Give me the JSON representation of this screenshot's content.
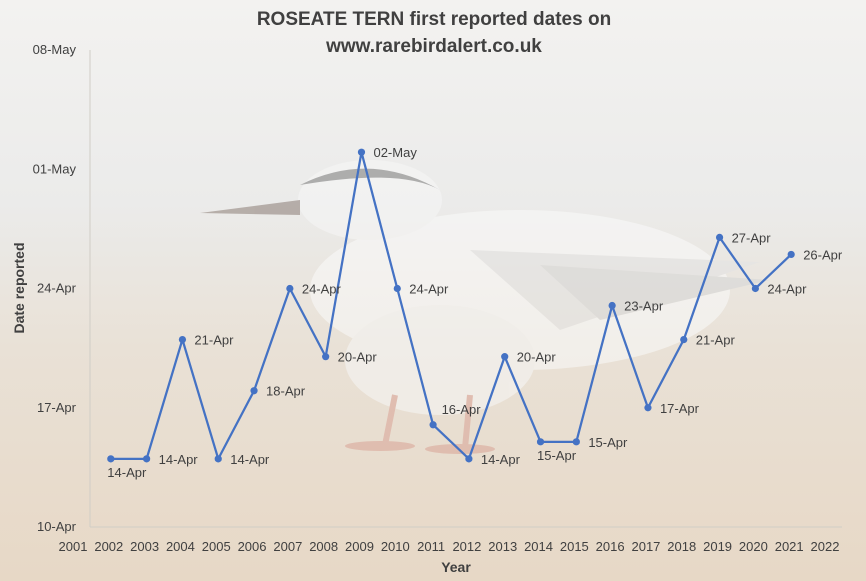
{
  "chart_data": {
    "type": "line",
    "title_line1": "ROSEATE TERN first reported dates on",
    "title_line2": "www.rarebirdalert.co.uk",
    "xlabel": "Year",
    "ylabel": "Date reported",
    "xlim": [
      2001,
      2022
    ],
    "x_ticks": [
      "2001",
      "2002",
      "2003",
      "2004",
      "2005",
      "2006",
      "2007",
      "2008",
      "2009",
      "2010",
      "2011",
      "2012",
      "2013",
      "2014",
      "2015",
      "2016",
      "2017",
      "2018",
      "2019",
      "2020",
      "2021",
      "2022"
    ],
    "y_ticks": [
      "10-Apr",
      "17-Apr",
      "24-Apr",
      "01-May",
      "08-May"
    ],
    "y_range_day_of_april": [
      10,
      38
    ],
    "grid": false,
    "legend": "none",
    "series": [
      {
        "color": "#4472c4",
        "x": [
          2002,
          2003,
          2004,
          2005,
          2006,
          2007,
          2008,
          2009,
          2010,
          2011,
          2012,
          2013,
          2014,
          2015,
          2016,
          2017,
          2018,
          2019,
          2020,
          2021
        ],
        "y": [
          "14-Apr",
          "14-Apr",
          "21-Apr",
          "14-Apr",
          "18-Apr",
          "24-Apr",
          "20-Apr",
          "02-May",
          "24-Apr",
          "16-Apr",
          "14-Apr",
          "20-Apr",
          "15-Apr",
          "15-Apr",
          "23-Apr",
          "17-Apr",
          "21-Apr",
          "27-Apr",
          "24-Apr",
          "26-Apr"
        ],
        "y_day_of_april": [
          14,
          14,
          21,
          14,
          18,
          24,
          20,
          32,
          24,
          16,
          14,
          20,
          15,
          15,
          23,
          17,
          21,
          27,
          24,
          26
        ],
        "labels": [
          "14-Apr",
          "14-Apr",
          "21-Apr",
          "14-Apr",
          "18-Apr",
          "24-Apr",
          "20-Apr",
          "02-May",
          "24-Apr",
          "16-Apr",
          "14-Apr",
          "20-Apr",
          "15-Apr",
          "15-Apr",
          "23-Apr",
          "17-Apr",
          "21-Apr",
          "27-Apr",
          "24-Apr",
          "26-Apr"
        ]
      }
    ]
  }
}
